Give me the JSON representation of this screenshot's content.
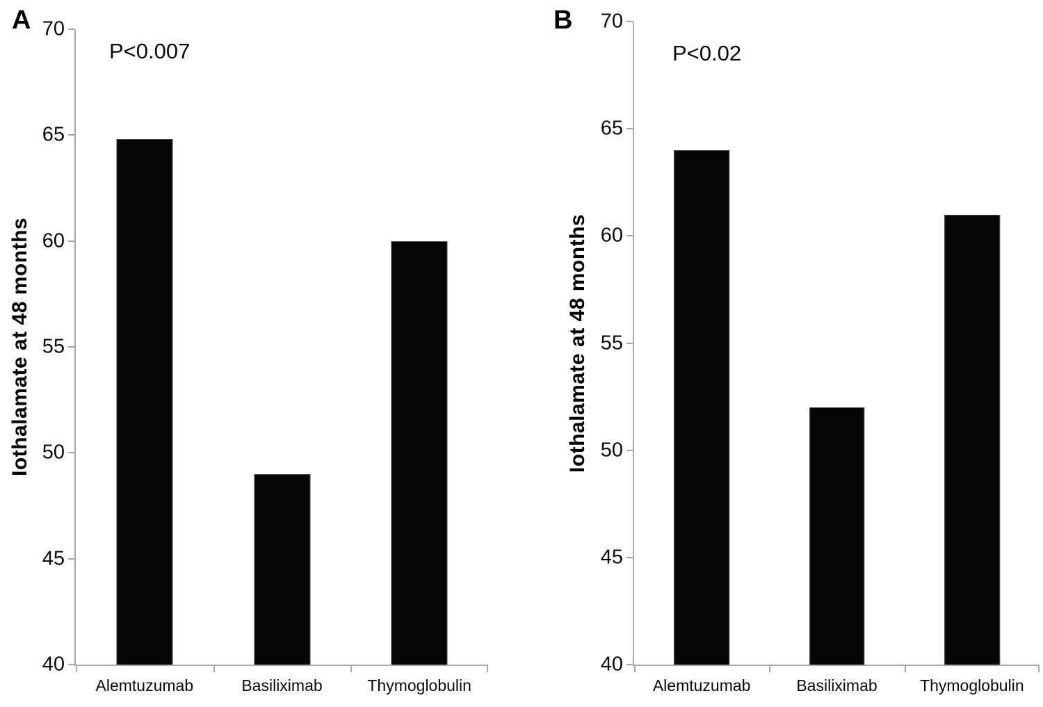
{
  "chart_data": [
    {
      "type": "bar",
      "panel": "A",
      "annotation": "P<0.007",
      "ylabel": "Iothalamate at 48 months",
      "xlabel": "",
      "categories": [
        "Alemtuzumab",
        "Basiliximab",
        "Thymoglobulin"
      ],
      "values": [
        64.8,
        49,
        60
      ],
      "ylim": [
        40,
        70
      ],
      "yticks": [
        70,
        65,
        60,
        55,
        50,
        45,
        40
      ],
      "grid": false,
      "legend": "none",
      "bar_color": "#060606",
      "axis_color": "#a8a8a8"
    },
    {
      "type": "bar",
      "panel": "B",
      "annotation": "P<0.02",
      "ylabel": "Iothalamate at 48 months",
      "xlabel": "",
      "categories": [
        "Alemtuzumab",
        "Basiliximab",
        "Thymoglobulin"
      ],
      "values": [
        64,
        52,
        61
      ],
      "ylim": [
        40,
        70
      ],
      "yticks": [
        70,
        65,
        60,
        55,
        50,
        45,
        40
      ],
      "grid": false,
      "legend": "none",
      "bar_color": "#060606",
      "axis_color": "#a8a8a8"
    }
  ]
}
